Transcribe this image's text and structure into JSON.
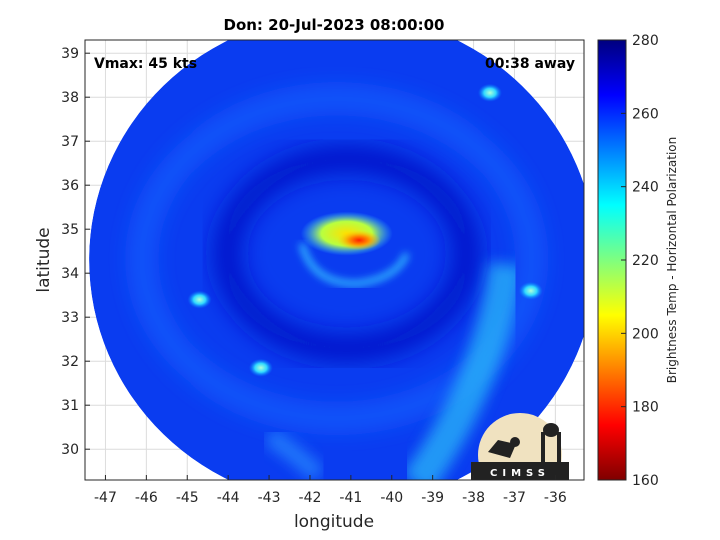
{
  "chart_data": {
    "type": "heatmap",
    "title": "Don: 20-Jul-2023 08:00:00",
    "annotations": {
      "left": "Vmax: 45 kts",
      "right": "00:38 away"
    },
    "xlabel": "longitude",
    "ylabel": "latitude",
    "xlim": [
      -47.5,
      -35.3
    ],
    "ylim": [
      29.3,
      39.3
    ],
    "xticks": [
      -47,
      -46,
      -45,
      -44,
      -43,
      -42,
      -41,
      -40,
      -39,
      -38,
      -37,
      -36
    ],
    "yticks": [
      30,
      31,
      32,
      33,
      34,
      35,
      36,
      37,
      38,
      39
    ],
    "grid": true,
    "swath": {
      "center_lon": -41.2,
      "center_lat": 34.3,
      "radius_lon": 6.2,
      "radius_lat": 5.6
    },
    "features": [
      {
        "kind": "eyewall",
        "lon": -41.1,
        "lat": 34.9,
        "value": 205
      },
      {
        "kind": "warm_core",
        "lon": -40.8,
        "lat": 34.75,
        "value": 185
      },
      {
        "kind": "cell",
        "lon": -44.7,
        "lat": 33.4,
        "value": 232
      },
      {
        "kind": "cell",
        "lon": -43.2,
        "lat": 31.85,
        "value": 228
      },
      {
        "kind": "cell",
        "lon": -36.6,
        "lat": 33.6,
        "value": 235
      },
      {
        "kind": "cell",
        "lon": -37.6,
        "lat": 38.1,
        "value": 238
      }
    ],
    "colorbar": {
      "label": "Brightness Temp - Horizontal Polarization",
      "min": 160,
      "max": 280,
      "ticks": [
        160,
        180,
        200,
        220,
        240,
        260,
        280
      ],
      "colormap": "jet-reversed",
      "colors": [
        "#7f0000",
        "#ff0000",
        "#ff7f00",
        "#ffff00",
        "#7fff7f",
        "#00ffff",
        "#007fff",
        "#0000ff",
        "#00007f"
      ]
    },
    "logo": "CIMSS"
  }
}
